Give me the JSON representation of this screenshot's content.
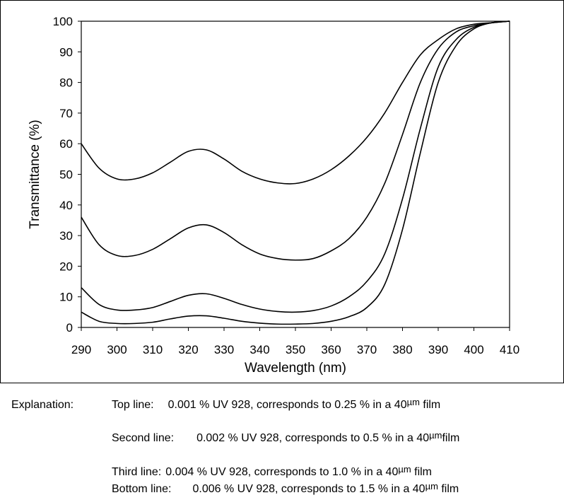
{
  "chart_data": {
    "type": "line",
    "title": "",
    "xlabel": "Wavelength (nm)",
    "ylabel": "Transmittance (%)",
    "xlim": [
      290,
      410
    ],
    "ylim": [
      0,
      100
    ],
    "xticks": [
      290,
      300,
      310,
      320,
      330,
      340,
      350,
      360,
      370,
      380,
      390,
      400,
      410
    ],
    "yticks": [
      0,
      10,
      20,
      30,
      40,
      50,
      60,
      70,
      80,
      90,
      100
    ],
    "grid": false,
    "legend": "none",
    "series": [
      {
        "x": [
          290,
          295,
          300,
          305,
          310,
          315,
          320,
          325,
          330,
          335,
          340,
          345,
          350,
          355,
          360,
          365,
          370,
          375,
          380,
          385,
          390,
          395,
          400,
          405,
          410
        ],
        "y": [
          60,
          52,
          48.5,
          48.5,
          50.5,
          54,
          57.5,
          58,
          55,
          51,
          48.5,
          47.2,
          47,
          48.5,
          51.5,
          56,
          62,
          70,
          80,
          89,
          94,
          97.5,
          99,
          99.5,
          100
        ]
      },
      {
        "x": [
          290,
          295,
          300,
          305,
          310,
          315,
          320,
          325,
          330,
          335,
          340,
          345,
          350,
          355,
          360,
          365,
          370,
          375,
          380,
          385,
          390,
          395,
          400,
          405,
          410
        ],
        "y": [
          36,
          27,
          23.5,
          23.5,
          25.5,
          29,
          32.5,
          33.5,
          31,
          27,
          24,
          22.5,
          22,
          22.5,
          25,
          29,
          36,
          47,
          63,
          80,
          91,
          96.5,
          98.5,
          99.5,
          100
        ]
      },
      {
        "x": [
          290,
          295,
          300,
          305,
          310,
          315,
          320,
          325,
          330,
          335,
          340,
          345,
          350,
          355,
          360,
          365,
          370,
          375,
          380,
          385,
          390,
          395,
          400,
          405,
          410
        ],
        "y": [
          13,
          7.5,
          5.7,
          5.7,
          6.5,
          8.5,
          10.5,
          11,
          9.5,
          7.5,
          6,
          5.2,
          5,
          5.5,
          7,
          10,
          15,
          24,
          42,
          65,
          85,
          94,
          98,
          99.5,
          100
        ]
      },
      {
        "x": [
          290,
          295,
          300,
          305,
          310,
          315,
          320,
          325,
          330,
          335,
          340,
          345,
          350,
          355,
          360,
          365,
          370,
          375,
          380,
          385,
          390,
          395,
          400,
          405,
          410
        ],
        "y": [
          5,
          2,
          1.3,
          1.3,
          1.7,
          2.8,
          3.7,
          3.8,
          3,
          2,
          1.4,
          1.1,
          1.1,
          1.3,
          2,
          3.5,
          6.5,
          14,
          32,
          57,
          80,
          92,
          97.5,
          99.5,
          100
        ]
      }
    ]
  },
  "explanation": {
    "heading": "Explanation:",
    "lines": [
      {
        "label": "Top line:",
        "text": "0.001 % UV 928, corresponds to 0.25 % in a 40",
        "unit": "µm",
        "suffix": " film"
      },
      {
        "label": "Second line:",
        "text": "0.002 % UV 928, corresponds to 0.5 % in a 40",
        "unit": "µm",
        "suffix": "film"
      },
      {
        "label": "Third line:",
        "text": "0.004 % UV 928, corresponds to 1.0 % in a 40",
        "unit": "µm",
        "suffix": " film"
      },
      {
        "label": "Bottom line:",
        "text": "0.006 % UV 928, corresponds to 1.5 % in a 40",
        "unit": "µm",
        "suffix": " film"
      }
    ]
  }
}
